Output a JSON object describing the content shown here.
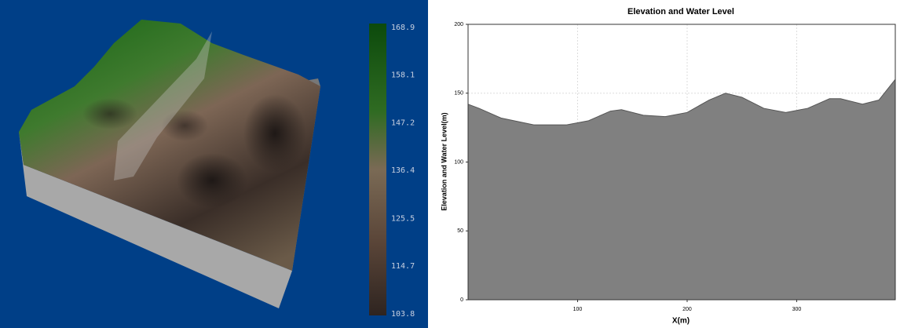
{
  "colorbar": {
    "ticks": [
      168.9,
      158.1,
      147.2,
      136.4,
      125.5,
      114.7,
      103.8
    ]
  },
  "chart_data": {
    "type": "area",
    "title": "Elevation and Water Level",
    "x_label": "X(m)",
    "y_label": "Elevation and Water Level(m)",
    "x": [
      0,
      10,
      30,
      60,
      90,
      110,
      130,
      140,
      160,
      180,
      200,
      220,
      235,
      250,
      270,
      290,
      310,
      330,
      340,
      360,
      375,
      390
    ],
    "values": [
      142,
      139,
      132,
      127,
      127,
      130,
      137,
      138,
      134,
      133,
      136,
      145,
      150,
      147,
      139,
      136,
      139,
      146,
      146,
      142,
      145,
      160
    ],
    "color": "#808080",
    "xlim": [
      0,
      390
    ],
    "xticks": [
      100,
      200,
      300
    ],
    "ylim": [
      0,
      200
    ],
    "yticks": [
      0,
      50,
      100,
      150,
      200
    ],
    "grid": true
  }
}
